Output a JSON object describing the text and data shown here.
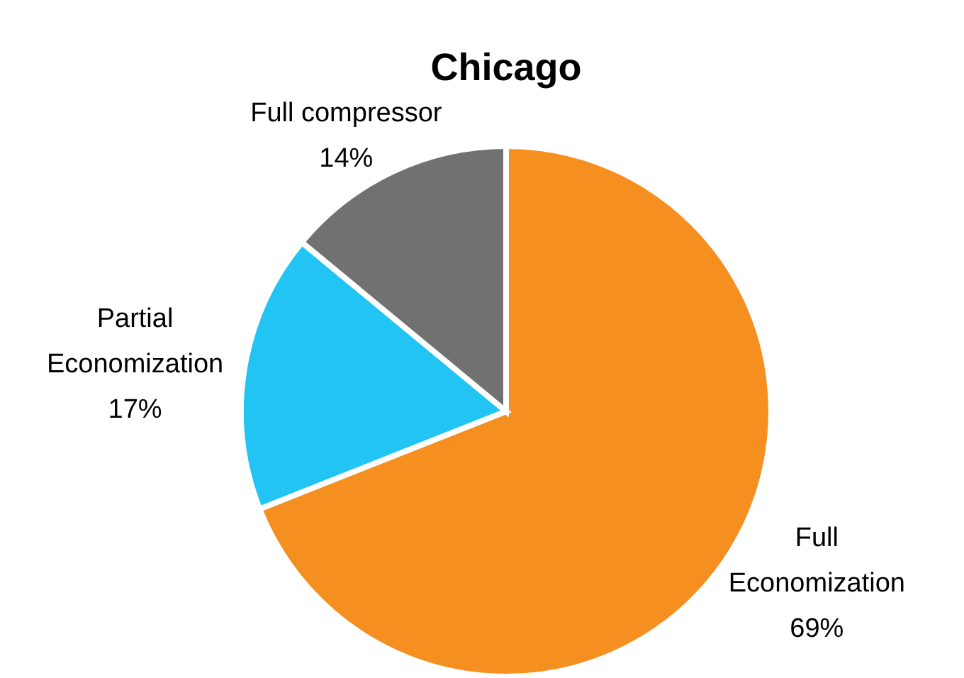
{
  "chart_data": {
    "type": "pie",
    "title": "Chicago",
    "categories": [
      "Full Economization",
      "Partial Economization",
      "Full compressor"
    ],
    "values": [
      69,
      17,
      14
    ],
    "colors": [
      "#f58f20",
      "#21c4f2",
      "#717171"
    ],
    "value_labels": [
      "69%",
      "17%",
      "14%"
    ]
  }
}
